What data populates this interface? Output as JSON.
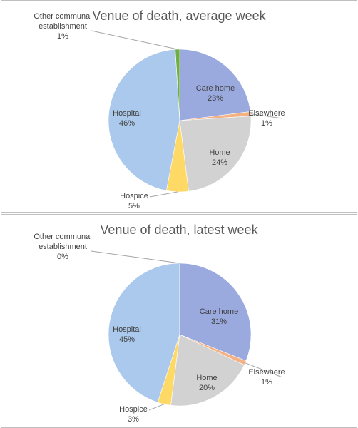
{
  "chart_data": [
    {
      "type": "pie",
      "title": "Venue of death, average week",
      "categories": [
        "Care home",
        "Elsewhere",
        "Home",
        "Hospice",
        "Hospital",
        "Other communal establishment"
      ],
      "values": [
        23,
        1,
        24,
        5,
        46,
        1
      ],
      "value_labels": [
        "23%",
        "1%",
        "24%",
        "5%",
        "46%",
        "1%"
      ],
      "colors": [
        "#9aaadf",
        "#f4b183",
        "#d2d2d2",
        "#ffd966",
        "#abc9ec",
        "#70ad47"
      ]
    },
    {
      "type": "pie",
      "title": "Venue of death, latest week",
      "categories": [
        "Care home",
        "Elsewhere",
        "Home",
        "Hospice",
        "Hospital",
        "Other communal establishment"
      ],
      "values": [
        31,
        1,
        20,
        3,
        45,
        0
      ],
      "value_labels": [
        "31%",
        "1%",
        "20%",
        "3%",
        "45%",
        "0%"
      ],
      "colors": [
        "#9aaadf",
        "#f4b183",
        "#d2d2d2",
        "#ffd966",
        "#abc9ec",
        "#70ad47"
      ]
    }
  ]
}
